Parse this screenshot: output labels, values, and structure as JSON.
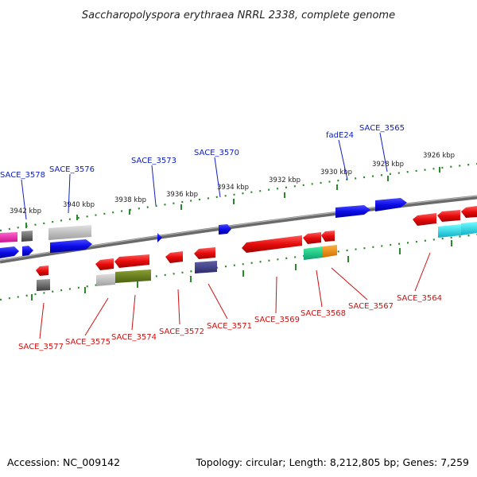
{
  "title": "Saccharopolyspora erythraea NRRL 2338, complete genome",
  "footer": {
    "accession": "Accession: NC_009142",
    "topology": "Topology: circular; Length: 8,212,805 bp; Genes: 7,259"
  },
  "kbp_ticks": [
    "3942 kbp",
    "3940 kbp",
    "3938 kbp",
    "3936 kbp",
    "3934 kbp",
    "3932 kbp",
    "3930 kbp",
    "3928 kbp",
    "3926 kbp"
  ],
  "top_labels": [
    "SACE_3578",
    "SACE_3576",
    "SACE_3573",
    "SACE_3570",
    "fadE24",
    "SACE_3565"
  ],
  "bottom_labels": [
    "SACE_3577",
    "SACE_3575",
    "SACE_3574",
    "SACE_3572",
    "SACE_3571",
    "SACE_3569",
    "SACE_3568",
    "SACE_3567",
    "SACE_3564"
  ],
  "colors": {
    "top_label": "#1020c0",
    "bottom_label": "#d01010",
    "backbone": "#808080",
    "tick": "#2a8a2a",
    "red_gene": "#e81010",
    "blue_gene": "#1010e0"
  }
}
